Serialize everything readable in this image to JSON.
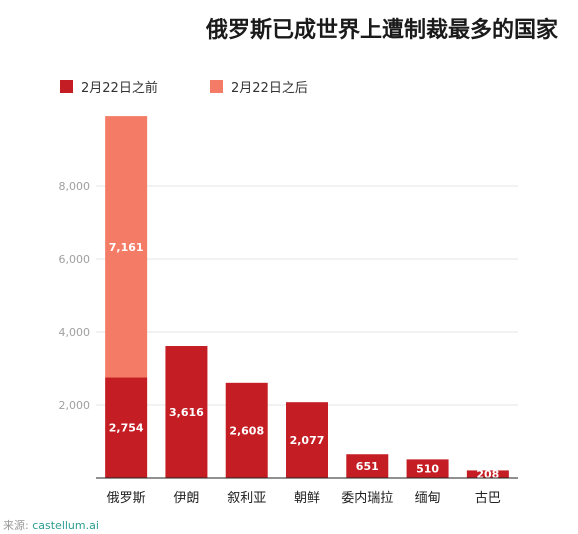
{
  "title": "俄罗斯已成世界上遭制裁最多的国家",
  "source_label": "来源:",
  "source_value": "castellum.ai",
  "chart_data": {
    "type": "bar",
    "stacked": true,
    "categories": [
      "俄罗斯",
      "伊朗",
      "叙利亚",
      "朝鲜",
      "委内瑞拉",
      "缅甸",
      "古巴"
    ],
    "series": [
      {
        "name": "2月22日之前",
        "color": "#c41e24",
        "values": [
          2754,
          3616,
          2608,
          2077,
          651,
          510,
          208
        ]
      },
      {
        "name": "2月22日之后",
        "color": "#f47c66",
        "values": [
          7161,
          0,
          0,
          0,
          0,
          0,
          0
        ]
      }
    ],
    "data_labels": [
      [
        "2,754",
        "3,616",
        "2,608",
        "2,077",
        "651",
        "510",
        "208"
      ],
      [
        "7,161",
        "",
        "",
        "",
        "",
        "",
        ""
      ]
    ],
    "yticks": [
      2000,
      4000,
      6000,
      8000
    ],
    "ytick_labels": [
      "2,000",
      "4,000",
      "6,000",
      "8,000"
    ],
    "ylim": [
      0,
      10000
    ],
    "grid": true,
    "legend_position": "top-left"
  }
}
